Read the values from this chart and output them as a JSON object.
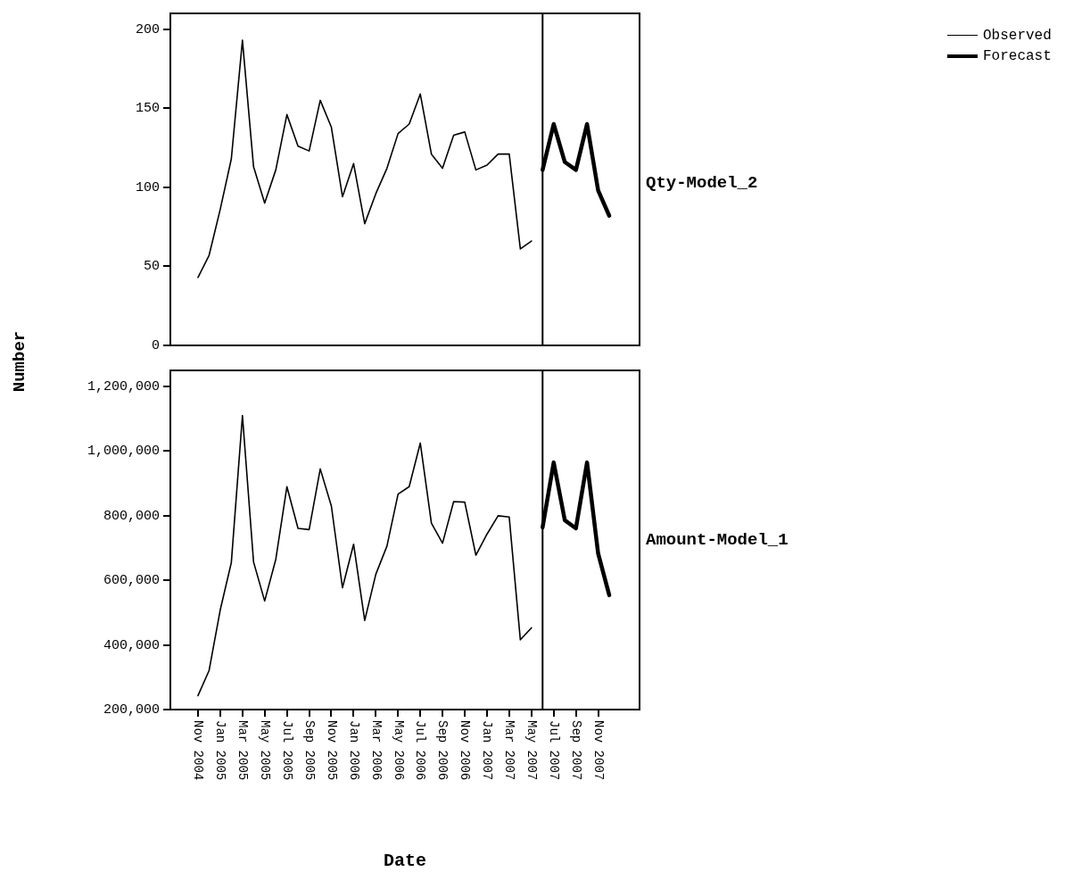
{
  "chart_data": [
    {
      "type": "line",
      "title": "Qty-Model_2",
      "ylabel": "Number",
      "xlim": [
        "2004-08-17",
        "2008-02-22"
      ],
      "ylim": [
        0,
        210
      ],
      "yticks": [
        0,
        50,
        100,
        150,
        200
      ],
      "tick_labels": "y",
      "grid": false,
      "legend": "top right",
      "ref_lines": [
        {
          "axis": "x",
          "value": "2007-06",
          "color": "#000000"
        }
      ],
      "series": [
        {
          "name": "Observed",
          "color": "#000000",
          "x": [
            "2004-11",
            "2004-12",
            "2005-01",
            "2005-02",
            "2005-03",
            "2005-04",
            "2005-05",
            "2005-06",
            "2005-07",
            "2005-08",
            "2005-09",
            "2005-10",
            "2005-11",
            "2005-12",
            "2006-01",
            "2006-02",
            "2006-03",
            "2006-04",
            "2006-05",
            "2006-06",
            "2006-07",
            "2006-08",
            "2006-09",
            "2006-10",
            "2006-11",
            "2006-12",
            "2007-01",
            "2007-02",
            "2007-03",
            "2007-04",
            "2007-05"
          ],
          "values": [
            43,
            57,
            86,
            118,
            193,
            113,
            90,
            111,
            146,
            126,
            123,
            155,
            138,
            94,
            115,
            77,
            96,
            112,
            134,
            140,
            159,
            121,
            112,
            133,
            135,
            111,
            114,
            121,
            121,
            61,
            66
          ]
        },
        {
          "name": "Forecast",
          "color": "#000000",
          "x": [
            "2007-06",
            "2007-07",
            "2007-08",
            "2007-09",
            "2007-10",
            "2007-11",
            "2007-12"
          ],
          "values": [
            111,
            140,
            116,
            111,
            140,
            98,
            82
          ]
        }
      ]
    },
    {
      "type": "line",
      "title": "Amount-Model_1",
      "xlabel": "Date",
      "xlim": [
        "2004-08-17",
        "2008-02-22"
      ],
      "ylim": [
        200000,
        1250000
      ],
      "yticks": [
        {
          "value": 200000,
          "label": "200,000"
        },
        {
          "value": 400000,
          "label": "400,000"
        },
        {
          "value": 600000,
          "label": "600,000"
        },
        {
          "value": 800000,
          "label": "800,000"
        },
        {
          "value": 1000000,
          "label": "1,000,000"
        },
        {
          "value": 1200000,
          "label": "1,200,000"
        }
      ],
      "xticks": [
        {
          "value": "2004-11",
          "label": "Nov 2004"
        },
        {
          "value": "2005-01",
          "label": "Jan 2005"
        },
        {
          "value": "2005-03",
          "label": "Mar 2005"
        },
        {
          "value": "2005-05",
          "label": "May 2005"
        },
        {
          "value": "2005-07",
          "label": "Jul 2005"
        },
        {
          "value": "2005-09",
          "label": "Sep 2005"
        },
        {
          "value": "2005-11",
          "label": "Nov 2005"
        },
        {
          "value": "2006-01",
          "label": "Jan 2006"
        },
        {
          "value": "2006-03",
          "label": "Mar 2006"
        },
        {
          "value": "2006-05",
          "label": "May 2006"
        },
        {
          "value": "2006-07",
          "label": "Jul 2006"
        },
        {
          "value": "2006-09",
          "label": "Sep 2006"
        },
        {
          "value": "2006-11",
          "label": "Nov 2006"
        },
        {
          "value": "2007-01",
          "label": "Jan 2007"
        },
        {
          "value": "2007-03",
          "label": "Mar 2007"
        },
        {
          "value": "2007-05",
          "label": "May 2007"
        },
        {
          "value": "2007-07",
          "label": "Jul 2007"
        },
        {
          "value": "2007-09",
          "label": "Sep 2007"
        },
        {
          "value": "2007-11",
          "label": "Nov 2007"
        }
      ],
      "grid": false,
      "ref_lines": [
        {
          "axis": "x",
          "value": "2007-06",
          "color": "#000000"
        }
      ],
      "series": [
        {
          "color": "#000000",
          "x": [
            "2004-11",
            "2004-12",
            "2005-01",
            "2005-02",
            "2005-03",
            "2005-04",
            "2005-05",
            "2005-06",
            "2005-07",
            "2005-08",
            "2005-09",
            "2005-10",
            "2005-11",
            "2005-12",
            "2006-01",
            "2006-02",
            "2006-03",
            "2006-04",
            "2006-05",
            "2006-06",
            "2006-07",
            "2006-08",
            "2006-09",
            "2006-10",
            "2006-11",
            "2006-12",
            "2007-01",
            "2007-02",
            "2007-03",
            "2007-04",
            "2007-05"
          ],
          "values": [
            243000,
            321000,
            508000,
            655000,
            1110000,
            657000,
            536000,
            665000,
            890000,
            761000,
            757000,
            945000,
            830000,
            577000,
            712000,
            476000,
            619000,
            706000,
            867000,
            890000,
            1025000,
            777000,
            715000,
            844000,
            842000,
            678000,
            743000,
            800000,
            796000,
            416000,
            453000
          ]
        },
        {
          "color": "#000000",
          "x": [
            "2007-06",
            "2007-07",
            "2007-08",
            "2007-09",
            "2007-10",
            "2007-11",
            "2007-12"
          ],
          "values": [
            764000,
            965000,
            786000,
            761000,
            965000,
            683000,
            554000
          ]
        }
      ]
    }
  ]
}
